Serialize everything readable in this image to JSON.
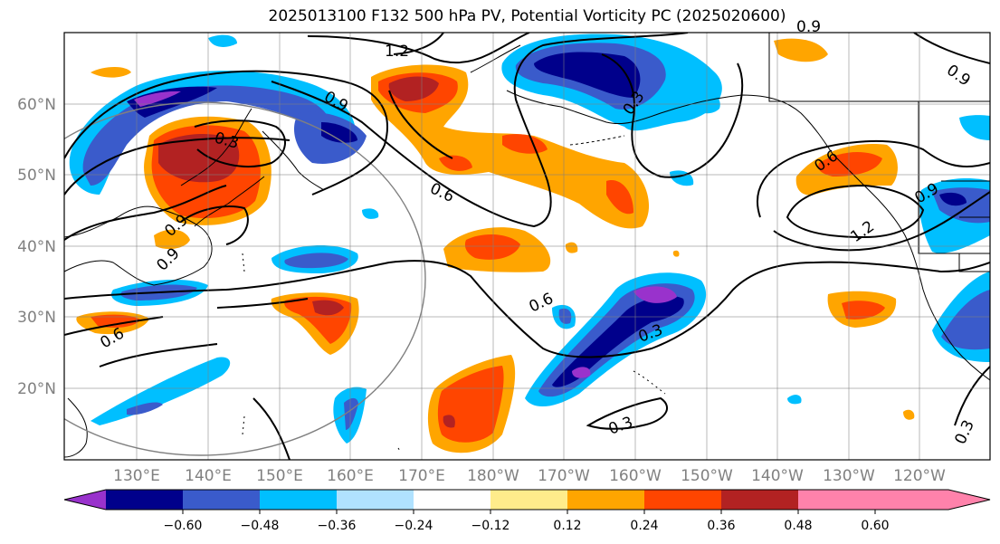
{
  "title": "2025013100 F132 500 hPa PV, Potential Vorticity PC (2025020600)",
  "map": {
    "lat_labels": [
      "60°N",
      "50°N",
      "40°N",
      "30°N",
      "20°N"
    ],
    "lon_labels": [
      "130°E",
      "140°E",
      "150°E",
      "160°E",
      "170°E",
      "180°W",
      "170°W",
      "160°W",
      "150°W",
      "140°W",
      "130°W",
      "120°W"
    ],
    "contour_labels": [
      "1.2",
      "0.9",
      "0.3",
      "0.9",
      "0.3",
      "0.6",
      "0.9",
      "0.9",
      "0.6",
      "0.9",
      "1.2",
      "0.6",
      "0.3",
      "0.3",
      "0.3",
      "0.9",
      "0.6"
    ]
  },
  "colorbar": {
    "ticks": [
      "−0.60",
      "−0.48",
      "−0.36",
      "−0.24",
      "−0.12",
      "0.12",
      "0.24",
      "0.36",
      "0.48",
      "0.60"
    ],
    "colors": [
      "#9932CC",
      "#00008B",
      "#3A5BCB",
      "#00BFFF",
      "#B0E2FF",
      "#FFFFFF",
      "#FFEC8B",
      "#FFA500",
      "#FF4500",
      "#B22222",
      "#FF82AB"
    ]
  },
  "colors": {
    "pv_neg_060": "#9932CC",
    "pv_neg_048": "#00008B",
    "pv_neg_036": "#3A5BCB",
    "pv_neg_024": "#00BFFF",
    "pv_neg_012": "#B0E2FF",
    "pv_pos_012": "#FFEC8B",
    "pv_pos_024": "#FFA500",
    "pv_pos_036": "#FF4500",
    "pv_pos_048": "#B22222",
    "pv_pos_060": "#FF82AB"
  }
}
